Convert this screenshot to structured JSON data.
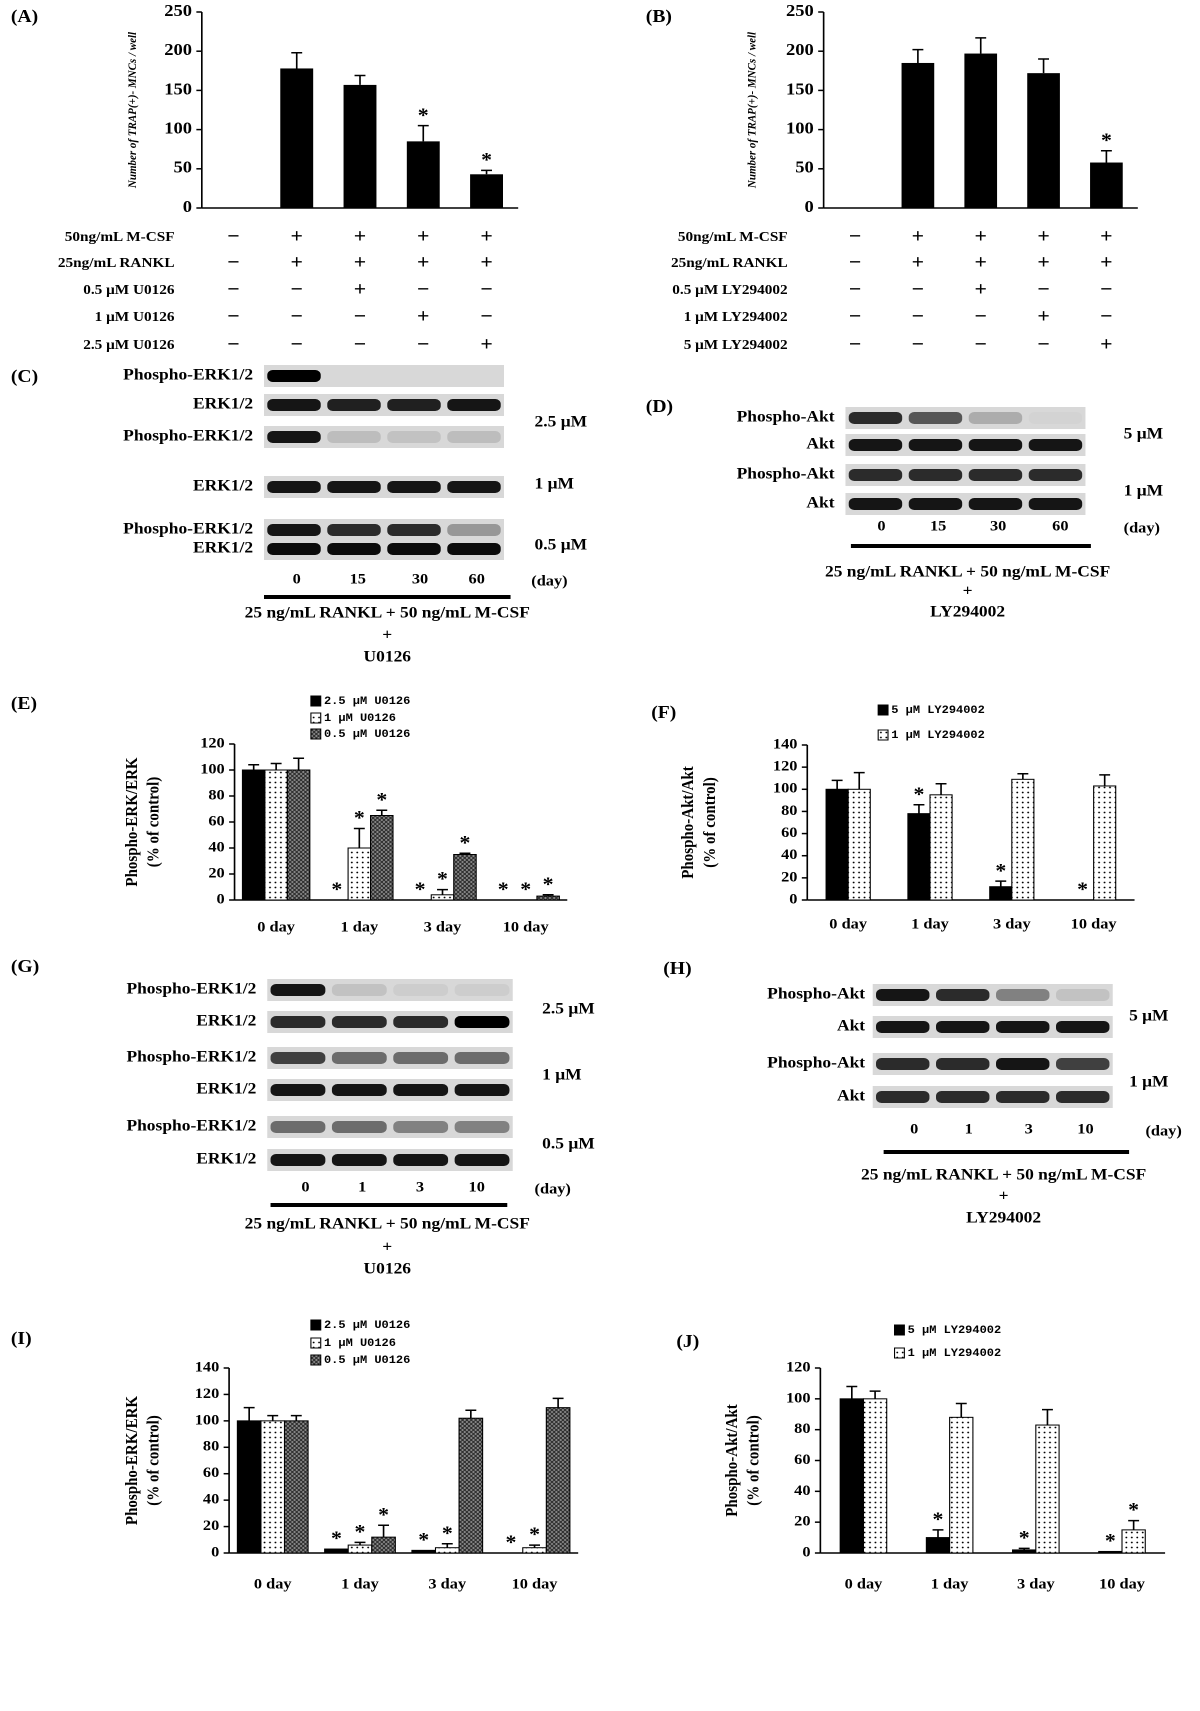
{
  "chart_data": [
    {
      "type": "bar",
      "panel": "(A)",
      "ylabel": "Number of TRAP(+)- MNCs / well",
      "categories": [
        null,
        null,
        null,
        null,
        null
      ],
      "values": [
        0,
        178,
        157,
        85,
        43
      ],
      "errors": [
        null,
        20,
        12,
        20,
        5
      ],
      "sig": [
        null,
        null,
        null,
        "*",
        "*"
      ],
      "color": "#000000",
      "ylim": [
        0,
        250
      ],
      "yticks": [
        0,
        50,
        100,
        150,
        200,
        250
      ],
      "conditions": [
        {
          "label": "50ng/mL M-CSF",
          "signs": [
            "−",
            "+",
            "+",
            "+",
            "+"
          ]
        },
        {
          "label": "25ng/mL RANKL",
          "signs": [
            "−",
            "+",
            "+",
            "+",
            "+"
          ]
        },
        {
          "label": "0.5 μM U0126",
          "signs": [
            "−",
            "−",
            "+",
            "−",
            "−"
          ]
        },
        {
          "label": "1 μM U0126",
          "signs": [
            "−",
            "−",
            "−",
            "+",
            "−"
          ]
        },
        {
          "label": "2.5 μM U0126",
          "signs": [
            "−",
            "−",
            "−",
            "−",
            "+"
          ]
        }
      ]
    },
    {
      "type": "bar",
      "panel": "(B)",
      "ylabel": "Number of TRAP(+)- MNCs / well",
      "categories": [
        null,
        null,
        null,
        null,
        null
      ],
      "values": [
        0,
        185,
        197,
        172,
        58
      ],
      "errors": [
        null,
        17,
        20,
        18,
        15
      ],
      "sig": [
        null,
        null,
        null,
        null,
        "*"
      ],
      "color": "#000000",
      "ylim": [
        0,
        250
      ],
      "yticks": [
        0,
        50,
        100,
        150,
        200,
        250
      ],
      "conditions": [
        {
          "label": "50ng/mL M-CSF",
          "signs": [
            "−",
            "+",
            "+",
            "+",
            "+"
          ]
        },
        {
          "label": "25ng/mL RANKL",
          "signs": [
            "−",
            "+",
            "+",
            "+",
            "+"
          ]
        },
        {
          "label": "0.5 μM LY294002",
          "signs": [
            "−",
            "−",
            "+",
            "−",
            "−"
          ]
        },
        {
          "label": "1 μM LY294002",
          "signs": [
            "−",
            "−",
            "−",
            "+",
            "−"
          ]
        },
        {
          "label": "5 μM LY294002",
          "signs": [
            "−",
            "−",
            "−",
            "−",
            "+"
          ]
        }
      ]
    },
    {
      "type": "grouped-bar",
      "panel": "(E)",
      "ylabel": [
        "Phospho-ERK/ERK",
        "(% of control)"
      ],
      "categories": [
        "0 day",
        "1 day",
        "3 day",
        "10 day"
      ],
      "ylim": [
        0,
        120
      ],
      "yticks": [
        0,
        20,
        40,
        60,
        80,
        100,
        120
      ],
      "series": [
        {
          "name": "2.5 μM U0126",
          "color": "#000000",
          "pattern": "solid",
          "values": [
            100,
            0,
            0,
            0
          ],
          "errors": [
            4,
            null,
            null,
            null
          ],
          "sig": [
            null,
            "*",
            "*",
            "*"
          ]
        },
        {
          "name": "1 μM U0126",
          "color": "#000000",
          "pattern": "dotted",
          "values": [
            100,
            40,
            4,
            0
          ],
          "errors": [
            5,
            15,
            4,
            null
          ],
          "sig": [
            null,
            "*",
            "*",
            "*"
          ]
        },
        {
          "name": "0.5 μM U0126",
          "color": "#000000",
          "pattern": "crosshatch",
          "values": [
            100,
            65,
            35,
            3
          ],
          "errors": [
            9,
            4,
            1,
            1
          ],
          "sig": [
            null,
            "*",
            "*",
            "*"
          ]
        }
      ]
    },
    {
      "type": "grouped-bar",
      "panel": "(F)",
      "ylabel": [
        "Phospho-Akt/Akt",
        "(% of control)"
      ],
      "categories": [
        "0 day",
        "1 day",
        "3 day",
        "10 day"
      ],
      "ylim": [
        0,
        140
      ],
      "yticks": [
        0,
        20,
        40,
        60,
        80,
        100,
        120,
        140
      ],
      "series": [
        {
          "name": "5 μM LY294002",
          "color": "#000000",
          "pattern": "solid",
          "values": [
            100,
            78,
            12,
            0
          ],
          "errors": [
            8,
            8,
            5,
            null
          ],
          "sig": [
            null,
            "*",
            "*",
            "*"
          ]
        },
        {
          "name": "1 μM LY294002",
          "color": "#000000",
          "pattern": "dotted",
          "values": [
            100,
            95,
            109,
            103
          ],
          "errors": [
            15,
            10,
            5,
            10
          ]
        }
      ]
    },
    {
      "type": "grouped-bar",
      "panel": "(I)",
      "ylabel": [
        "Phospho-ERK/ERK",
        "(% of control)"
      ],
      "categories": [
        "0 day",
        "1 day",
        "3 day",
        "10 day"
      ],
      "ylim": [
        0,
        140
      ],
      "yticks": [
        0,
        20,
        40,
        60,
        80,
        100,
        120,
        140
      ],
      "series": [
        {
          "name": "2.5 μM U0126",
          "color": "#000000",
          "pattern": "solid",
          "values": [
            100,
            3,
            2,
            0
          ],
          "errors": [
            10,
            null,
            null,
            null
          ],
          "sig": [
            null,
            "*",
            "*",
            "*"
          ]
        },
        {
          "name": "1 μM U0126",
          "color": "#000000",
          "pattern": "dotted",
          "values": [
            100,
            6,
            4,
            4
          ],
          "errors": [
            4,
            2,
            3,
            2
          ],
          "sig": [
            null,
            "*",
            "*",
            "*"
          ]
        },
        {
          "name": "0.5 μM U0126",
          "color": "#000000",
          "pattern": "crosshatch",
          "values": [
            100,
            12,
            102,
            110
          ],
          "errors": [
            4,
            9,
            6,
            7
          ],
          "sig": [
            null,
            "*",
            null,
            null
          ]
        }
      ]
    },
    {
      "type": "grouped-bar",
      "panel": "(J)",
      "ylabel": [
        "Phospho-Akt/Akt",
        "(% of control)"
      ],
      "categories": [
        "0 day",
        "1 day",
        "3 day",
        "10 day"
      ],
      "ylim": [
        0,
        120
      ],
      "yticks": [
        0,
        20,
        40,
        60,
        80,
        100,
        120
      ],
      "series": [
        {
          "name": "5 μM LY294002",
          "color": "#000000",
          "pattern": "solid",
          "values": [
            100,
            10,
            2,
            1
          ],
          "errors": [
            8,
            5,
            1,
            null
          ],
          "sig": [
            null,
            "*",
            "*",
            "*"
          ]
        },
        {
          "name": "1 μM LY294002",
          "color": "#000000",
          "pattern": "dotted",
          "values": [
            100,
            88,
            83,
            15
          ],
          "errors": [
            5,
            9,
            10,
            6
          ],
          "sig": [
            null,
            null,
            null,
            "*"
          ]
        }
      ]
    }
  ],
  "blots": [
    {
      "panel": "(C)",
      "rows": [
        "Phospho-ERK1/2",
        "ERK1/2",
        "Phospho-ERK1/2",
        "ERK1/2",
        "Phospho-ERK1/2",
        "ERK1/2"
      ],
      "concentrations": [
        "2.5 μM",
        "1 μM",
        "0.5 μM"
      ],
      "lanes": [
        "0",
        "15",
        "30",
        "60"
      ],
      "unit": "(day)",
      "treatment": [
        "25 ng/mL RANKL +  50 ng/mL M-CSF",
        "+",
        "U0126"
      ]
    },
    {
      "panel": "(D)",
      "rows": [
        "Phospho-Akt",
        "Akt",
        "Phospho-Akt",
        "Akt"
      ],
      "concentrations": [
        "5 μM",
        "1 μM"
      ],
      "lanes": [
        "0",
        "15",
        "30",
        "60"
      ],
      "unit": "(day)",
      "treatment": [
        "25 ng/mL RANKL +  50 ng/mL M-CSF",
        "+",
        "LY294002"
      ]
    },
    {
      "panel": "(G)",
      "rows": [
        "Phospho-ERK1/2",
        "ERK1/2",
        "Phospho-ERK1/2",
        "ERK1/2",
        "Phospho-ERK1/2",
        "ERK1/2"
      ],
      "concentrations": [
        "2.5 μM",
        "1 μM",
        "0.5 μM"
      ],
      "lanes": [
        "0",
        "1",
        "3",
        "10"
      ],
      "unit": "(day)",
      "treatment": [
        "25 ng/mL RANKL +  50 ng/mL M-CSF",
        "+",
        "U0126"
      ]
    },
    {
      "panel": "(H)",
      "rows": [
        "Phospho-Akt",
        "Akt",
        "Phospho-Akt",
        "Akt"
      ],
      "concentrations": [
        "5 μM",
        "1 μM"
      ],
      "lanes": [
        "0",
        "1",
        "3",
        "10"
      ],
      "unit": "(day)",
      "treatment": [
        "25 ng/mL RANKL +  50 ng/mL M-CSF",
        "+",
        "LY294002"
      ]
    }
  ]
}
